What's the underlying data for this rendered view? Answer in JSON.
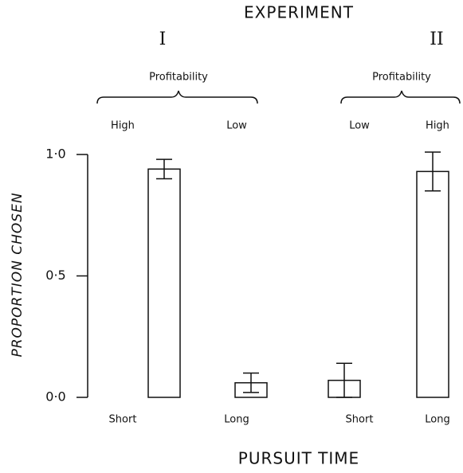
{
  "chart_data": {
    "type": "bar",
    "title": "EXPERIMENT",
    "x_label": "PURSUIT TIME",
    "y_label": "PROPORTION CHOSEN",
    "ylim": [
      0,
      1
    ],
    "yticks": [
      {
        "value": 0,
        "label": "0·0"
      },
      {
        "value": 0.5,
        "label": "0·5"
      },
      {
        "value": 1,
        "label": "1·0"
      }
    ],
    "color": "#ffffff",
    "groups": [
      {
        "name": "I",
        "label": "Profitability",
        "categories": [
          "Short",
          "Long"
        ],
        "profitability": [
          "High",
          "Low"
        ],
        "values": [
          0.94,
          0.06
        ],
        "errors": [
          0.04,
          0.04
        ]
      },
      {
        "name": "II",
        "label": "Profitability",
        "categories": [
          "Short",
          "Long"
        ],
        "profitability": [
          "Low",
          "High"
        ],
        "values": [
          0.07,
          0.93
        ],
        "errors": [
          0.07,
          0.08
        ]
      }
    ]
  }
}
